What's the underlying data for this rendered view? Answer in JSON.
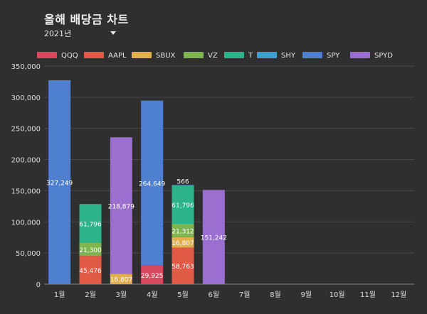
{
  "header": {
    "title": "올해 배당금 차트",
    "year_selected": "2021년"
  },
  "chart_data": {
    "type": "bar",
    "stacked": true,
    "categories": [
      "1월",
      "2월",
      "3월",
      "4월",
      "5월",
      "6월",
      "7월",
      "8월",
      "9월",
      "10월",
      "11월",
      "12월"
    ],
    "ylim": [
      0,
      350000
    ],
    "y_ticks": [
      "0",
      "50,000",
      "100,000",
      "150,000",
      "200,000",
      "250,000",
      "300,000",
      "350,000"
    ],
    "y_tick_values": [
      0,
      50000,
      100000,
      150000,
      200000,
      250000,
      300000,
      350000
    ],
    "grid": true,
    "legend_position": "top",
    "series": [
      {
        "name": "QQQ",
        "color": "#d9495e",
        "values": [
          0,
          0,
          0,
          29925,
          0,
          0,
          0,
          0,
          0,
          0,
          0,
          0
        ],
        "labels": [
          "",
          "",
          "",
          "29,925",
          "",
          "",
          "",
          "",
          "",
          "",
          "",
          ""
        ]
      },
      {
        "name": "AAPL",
        "color": "#e05a45",
        "values": [
          0,
          45476,
          0,
          0,
          58763,
          0,
          0,
          0,
          0,
          0,
          0,
          0
        ],
        "labels": [
          "",
          "45,476",
          "",
          "",
          "58,763",
          "",
          "",
          "",
          "",
          "",
          "",
          ""
        ]
      },
      {
        "name": "SBUX",
        "color": "#e1b04d",
        "values": [
          0,
          0,
          16807,
          0,
          16807,
          0,
          0,
          0,
          0,
          0,
          0,
          0
        ],
        "labels": [
          "",
          "",
          "16,807",
          "",
          "16,807",
          "",
          "",
          "",
          "",
          "",
          "",
          ""
        ]
      },
      {
        "name": "VZ",
        "color": "#7fb54f",
        "values": [
          0,
          21300,
          0,
          0,
          21312,
          0,
          0,
          0,
          0,
          0,
          0,
          0
        ],
        "labels": [
          "",
          "21,300",
          "",
          "",
          "21,312",
          "",
          "",
          "",
          "",
          "",
          "",
          ""
        ]
      },
      {
        "name": "T",
        "color": "#2db38a",
        "values": [
          0,
          61796,
          0,
          0,
          61796,
          0,
          0,
          0,
          0,
          0,
          0,
          0
        ],
        "labels": [
          "",
          "61,796",
          "",
          "",
          "61,796",
          "",
          "",
          "",
          "",
          "",
          "",
          ""
        ]
      },
      {
        "name": "SHY",
        "color": "#3e9fcf",
        "values": [
          0,
          0,
          0,
          0,
          566,
          0,
          0,
          0,
          0,
          0,
          0,
          0
        ],
        "labels": [
          "",
          "",
          "",
          "",
          "566",
          "",
          "",
          "",
          "",
          "",
          "",
          ""
        ]
      },
      {
        "name": "SPY",
        "color": "#4f7fcf",
        "values": [
          327249,
          0,
          0,
          264649,
          0,
          0,
          0,
          0,
          0,
          0,
          0,
          0
        ],
        "labels": [
          "327,249",
          "",
          "",
          "264,649",
          "",
          "",
          "",
          "",
          "",
          "",
          "",
          ""
        ]
      },
      {
        "name": "SPYD",
        "color": "#9a6fd0",
        "values": [
          0,
          0,
          218879,
          0,
          0,
          151242,
          0,
          0,
          0,
          0,
          0,
          0
        ],
        "labels": [
          "",
          "",
          "218,879",
          "",
          "",
          "151,242",
          "",
          "",
          "",
          "",
          "",
          ""
        ]
      }
    ]
  }
}
